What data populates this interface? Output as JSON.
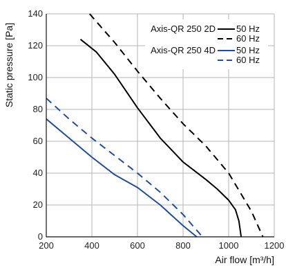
{
  "chart_data": {
    "type": "line",
    "xlabel": "Air flow [m³/h]",
    "ylabel": "Static pressure [Pa]",
    "xlim": [
      200,
      1200
    ],
    "ylim": [
      0,
      140
    ],
    "xticks": [
      200,
      400,
      600,
      800,
      1000,
      1200
    ],
    "yticks": [
      0,
      20,
      40,
      60,
      80,
      100,
      120,
      140
    ],
    "grid": true,
    "legend_position": "top-right",
    "legend_groups": [
      {
        "label": "Axis-QR 250 2D",
        "color": "#000000"
      },
      {
        "label": "Axis-QR 250 4D",
        "color": "#1f4e9e"
      }
    ],
    "series": [
      {
        "name": "50 Hz",
        "group": "Axis-QR 250 2D",
        "color": "#000000",
        "dash": false,
        "points": [
          [
            350,
            124
          ],
          [
            420,
            116
          ],
          [
            500,
            102
          ],
          [
            600,
            81
          ],
          [
            700,
            62
          ],
          [
            800,
            47
          ],
          [
            900,
            36
          ],
          [
            950,
            30
          ],
          [
            1000,
            23
          ],
          [
            1030,
            17
          ],
          [
            1045,
            10
          ],
          [
            1055,
            0
          ]
        ]
      },
      {
        "name": "60 Hz",
        "group": "Axis-QR 250 2D",
        "color": "#000000",
        "dash": true,
        "points": [
          [
            390,
            140
          ],
          [
            500,
            122
          ],
          [
            600,
            104
          ],
          [
            700,
            87
          ],
          [
            800,
            71
          ],
          [
            900,
            57
          ],
          [
            1000,
            40
          ],
          [
            1100,
            16
          ],
          [
            1150,
            0
          ]
        ]
      },
      {
        "name": "50 Hz",
        "group": "Axis-QR 250 4D",
        "color": "#1f4e9e",
        "dash": false,
        "points": [
          [
            200,
            74
          ],
          [
            300,
            62
          ],
          [
            400,
            50
          ],
          [
            500,
            39
          ],
          [
            600,
            31
          ],
          [
            700,
            20
          ],
          [
            800,
            7
          ],
          [
            860,
            0
          ]
        ]
      },
      {
        "name": "60 Hz",
        "group": "Axis-QR 250 4D",
        "color": "#1f4e9e",
        "dash": true,
        "points": [
          [
            200,
            87
          ],
          [
            300,
            74
          ],
          [
            400,
            62
          ],
          [
            500,
            51
          ],
          [
            600,
            40
          ],
          [
            700,
            28
          ],
          [
            800,
            14
          ],
          [
            885,
            0
          ]
        ]
      }
    ]
  }
}
